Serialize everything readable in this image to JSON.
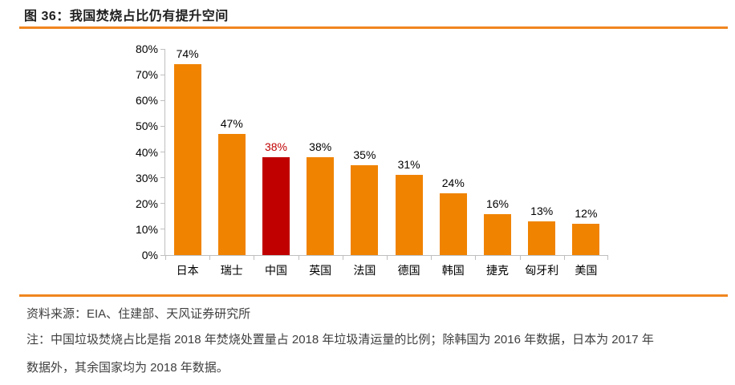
{
  "figure": {
    "title": "图 36：我国焚烧占比仍有提升空间",
    "source": "资料来源：EIA、住建部、天风证券研究所",
    "note_lines": [
      "注：中国垃圾焚烧占比是指 2018 年焚烧处置量占 2018 年垃圾清运量的比例；除韩国为 2016 年数据，日本为 2017 年",
      "数据外，其余国家均为 2018 年数据。"
    ]
  },
  "colors": {
    "bar_orange": "#f08300",
    "highlight_red": "#c00000",
    "rule_orange": "#f0861f",
    "axis_gray": "#bfbfbf",
    "title_text": "#1f1f1f",
    "body_text": "#404040",
    "label_text": "#000000"
  },
  "chart_data": {
    "type": "bar",
    "title": "图 36：我国焚烧占比仍有提升空间",
    "categories": [
      "日本",
      "瑞士",
      "中国",
      "英国",
      "法国",
      "德国",
      "韩国",
      "捷克",
      "匈牙利",
      "美国"
    ],
    "values": [
      74,
      47,
      38,
      38,
      35,
      31,
      24,
      16,
      13,
      12
    ],
    "value_labels": [
      "74%",
      "47%",
      "38%",
      "38%",
      "35%",
      "31%",
      "24%",
      "16%",
      "13%",
      "12%"
    ],
    "highlight_index": 2,
    "highlight_category": "中国",
    "xlabel": "",
    "ylabel": "",
    "ylim": [
      0,
      80
    ],
    "ytick_labels": [
      "0%",
      "10%",
      "20%",
      "30%",
      "40%",
      "50%",
      "60%",
      "70%",
      "80%"
    ],
    "grid": false,
    "legend": null
  }
}
